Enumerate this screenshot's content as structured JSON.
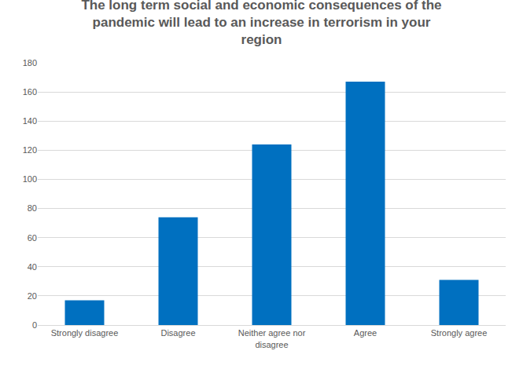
{
  "chart_data": {
    "type": "bar",
    "title": "The long term social and economic consequences of the pandemic will lead to an increase in terrorism in your region",
    "categories": [
      "Strongly disagree",
      "Disagree",
      "Neither agree nor disagree",
      "Agree",
      "Strongly agree"
    ],
    "values": [
      17,
      74,
      124,
      167,
      31
    ],
    "color": "#0070c0",
    "ylim": [
      0,
      180
    ],
    "yticks": [
      0,
      20,
      40,
      60,
      80,
      100,
      120,
      140,
      160,
      180
    ],
    "grid": true
  }
}
